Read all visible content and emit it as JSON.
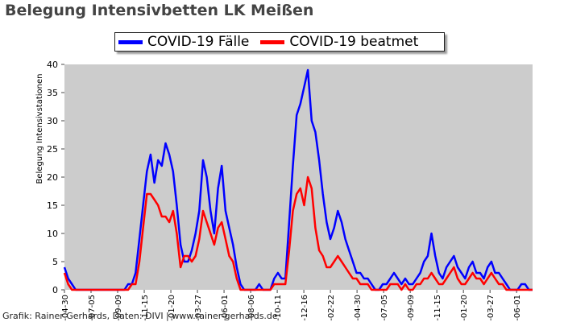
{
  "chart_data": {
    "type": "line",
    "title": "Belegung Intensivbetten LK Meißen",
    "ylabel": "Belegung Intensivstationen",
    "xlabel": "",
    "ylim": [
      0,
      40
    ],
    "yticks": [
      0,
      5,
      10,
      15,
      20,
      25,
      30,
      35,
      40
    ],
    "grid": false,
    "legend_position": "top-center",
    "background_color": "#cccccc",
    "xtick_labels": [
      "-04-30",
      "-07-05",
      "-09-09",
      "-11-15",
      "-01-20",
      "-03-27",
      "-06-01",
      "-08-06",
      "-10-11",
      "-12-16",
      "-02-22",
      "-04-30",
      "-07-05",
      "-09-09",
      "-11-15",
      "-01-20",
      "-03-27",
      "-06-01"
    ],
    "series": [
      {
        "name": "COVID-19 Fälle",
        "color": "#0000ff",
        "values": [
          4,
          2,
          1,
          0,
          0,
          0,
          0,
          0,
          0,
          0,
          0,
          0,
          0,
          0,
          0,
          0,
          0,
          1,
          1,
          3,
          9,
          15,
          21,
          24,
          19,
          23,
          22,
          26,
          24,
          21,
          15,
          8,
          5,
          5,
          7,
          10,
          14,
          23,
          20,
          14,
          10,
          18,
          22,
          14,
          11,
          8,
          4,
          1,
          0,
          0,
          0,
          0,
          1,
          0,
          0,
          0,
          2,
          3,
          2,
          2,
          12,
          22,
          31,
          33,
          36,
          39,
          30,
          28,
          23,
          17,
          12,
          9,
          11,
          14,
          12,
          9,
          7,
          5,
          3,
          3,
          2,
          2,
          1,
          0,
          0,
          1,
          1,
          2,
          3,
          2,
          1,
          2,
          1,
          1,
          2,
          3,
          5,
          6,
          10,
          6,
          3,
          2,
          4,
          5,
          6,
          4,
          3,
          2,
          4,
          5,
          3,
          3,
          2,
          4,
          5,
          3,
          3,
          2,
          1,
          0,
          0,
          0,
          1,
          1,
          0,
          0
        ]
      },
      {
        "name": "COVID-19 beatmet",
        "color": "#ff0000",
        "values": [
          3,
          1,
          0,
          0,
          0,
          0,
          0,
          0,
          0,
          0,
          0,
          0,
          0,
          0,
          0,
          0,
          0,
          0,
          1,
          1,
          5,
          11,
          17,
          17,
          16,
          15,
          13,
          13,
          12,
          14,
          10,
          4,
          6,
          6,
          5,
          6,
          9,
          14,
          12,
          10,
          8,
          11,
          12,
          9,
          6,
          5,
          2,
          0,
          0,
          0,
          0,
          0,
          0,
          0,
          0,
          0,
          1,
          1,
          1,
          1,
          7,
          14,
          17,
          18,
          15,
          20,
          18,
          11,
          7,
          6,
          4,
          4,
          5,
          6,
          5,
          4,
          3,
          2,
          2,
          1,
          1,
          1,
          0,
          0,
          0,
          0,
          0,
          1,
          1,
          1,
          0,
          1,
          0,
          0,
          1,
          1,
          2,
          2,
          3,
          2,
          1,
          1,
          2,
          3,
          4,
          2,
          1,
          1,
          2,
          3,
          2,
          2,
          1,
          2,
          3,
          2,
          1,
          1,
          0,
          0,
          0,
          0,
          0,
          0,
          0,
          0
        ]
      }
    ]
  },
  "footer": "Grafik: Rainer Gerhards, Daten: DIVI | www.rainer-gerhards.de"
}
